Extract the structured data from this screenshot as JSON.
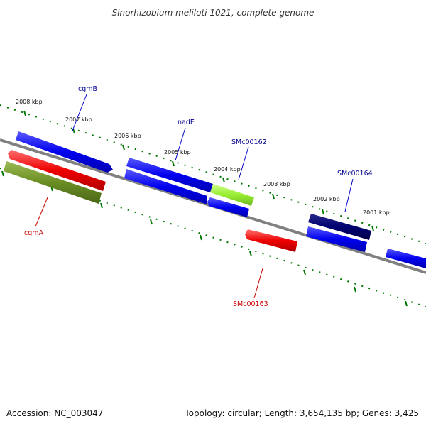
{
  "title": "Sinorhizobium meliloti 1021, complete genome",
  "footer": {
    "accession": "Accession: NC_003047",
    "topology": "Topology: circular; Length: 3,654,135 bp; Genes: 3,425"
  },
  "colors": {
    "blue": "#0000ee",
    "navy": "#000080",
    "red": "#ee0000",
    "olive": "#6b8e23",
    "lime": "#99ee33",
    "axis": "#808080",
    "ticks": "#007700",
    "label_blue": "#00008b",
    "label_red": "#cc0000"
  },
  "kbp_labels": [
    "2008 kbp",
    "2007 kbp",
    "2006 kbp",
    "2005 kbp",
    "2004 kbp",
    "2003 kbp",
    "2002 kbp",
    "2001 kbp"
  ],
  "genes": [
    {
      "label": "cgmB",
      "color": "blue"
    },
    {
      "label": "nadE",
      "color": "blue"
    },
    {
      "label": "SMc00162",
      "color": "lime"
    },
    {
      "label": "SMc00164",
      "color": "navy"
    },
    {
      "label": "cgmA",
      "color": "olive"
    },
    {
      "label": "SMc00163",
      "color": "red"
    }
  ]
}
